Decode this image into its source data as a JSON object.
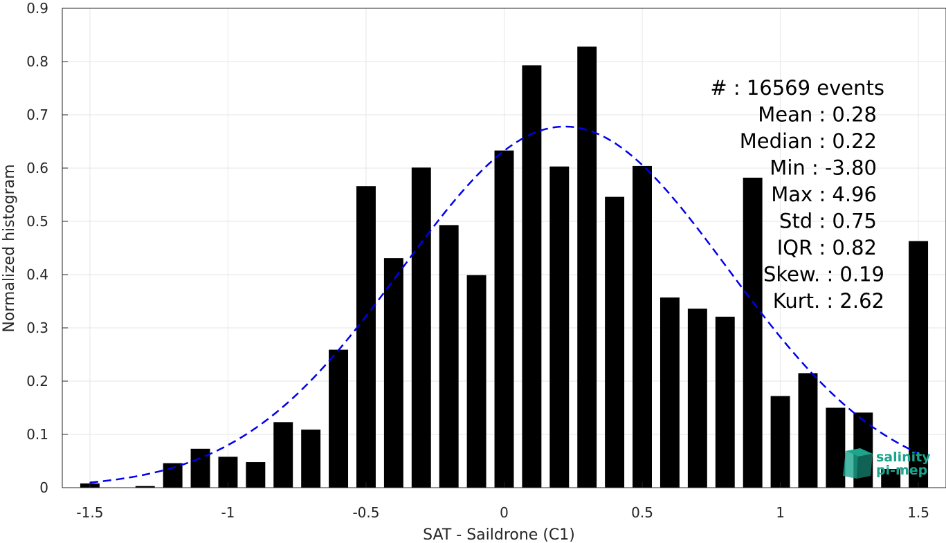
{
  "chart_data": {
    "type": "bar",
    "xlabel": "SAT - Saildrone (C1)",
    "ylabel": "Normalized histogram",
    "xlim": [
      -1.6,
      1.6
    ],
    "ylim": [
      0,
      0.9
    ],
    "xticks": [
      -1.5,
      -1,
      -0.5,
      0,
      0.5,
      1,
      1.5
    ],
    "xtick_labels": [
      "-1.5",
      "-1",
      "-0.5",
      "0",
      "0.5",
      "1",
      "1.5"
    ],
    "yticks": [
      0,
      0.1,
      0.2,
      0.3,
      0.4,
      0.5,
      0.6,
      0.7,
      0.8,
      0.9
    ],
    "ytick_labels": [
      "0",
      "0.1",
      "0.2",
      "0.3",
      "0.4",
      "0.5",
      "0.6",
      "0.7",
      "0.8",
      "0.9"
    ],
    "grid": true,
    "bar_width": 0.07,
    "bar_color": "#000000",
    "x": [
      -1.5,
      -1.4,
      -1.3,
      -1.2,
      -1.1,
      -1.0,
      -0.9,
      -0.8,
      -0.7,
      -0.6,
      -0.5,
      -0.4,
      -0.3,
      -0.2,
      -0.1,
      0.0,
      0.1,
      0.2,
      0.3,
      0.4,
      0.5,
      0.6,
      0.7,
      0.8,
      0.9,
      1.0,
      1.1,
      1.2,
      1.3,
      1.4,
      1.5
    ],
    "values": [
      0.008,
      0.0,
      0.003,
      0.046,
      0.073,
      0.058,
      0.048,
      0.123,
      0.109,
      0.259,
      0.566,
      0.431,
      0.601,
      0.493,
      0.399,
      0.633,
      0.793,
      0.603,
      0.828,
      0.546,
      0.604,
      0.357,
      0.336,
      0.321,
      0.582,
      0.172,
      0.215,
      0.15,
      0.141,
      0.035,
      0.463
    ],
    "fit": {
      "type": "gaussian",
      "color": "#0000ee",
      "style": "dashed",
      "mean": 0.22,
      "std": 0.59,
      "peak": 0.678,
      "x_range": [
        -1.5,
        1.5
      ]
    },
    "stats": [
      "#  : 16569 events",
      "Mean : 0.28",
      "Median : 0.22",
      "Min : -3.80",
      "Max : 4.96",
      "Std : 0.75",
      "IQR : 0.82",
      "Skew. : 0.19",
      "Kurt. : 2.62"
    ]
  },
  "logo": {
    "line1": "salinity",
    "line2": "pi-mep",
    "color": "#1aa58c"
  }
}
